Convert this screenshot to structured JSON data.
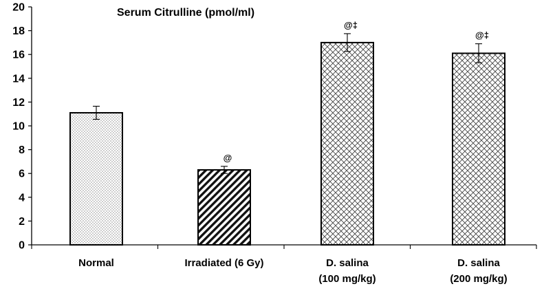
{
  "chart_data": {
    "type": "bar",
    "title": "Serum Citrulline (pmol/ml)",
    "xlabel": "",
    "ylabel": "",
    "ylim": [
      0,
      20
    ],
    "yticks": [
      0,
      2,
      4,
      6,
      8,
      10,
      12,
      14,
      16,
      18,
      20
    ],
    "grid": false,
    "legend": "none",
    "categories": [
      [
        "Normal"
      ],
      [
        "Irradiated (6 Gy)"
      ],
      [
        "D. salina",
        "(100 mg/kg)"
      ],
      [
        "D. salina",
        "(200 mg/kg)"
      ]
    ],
    "values": [
      11.1,
      6.3,
      17.0,
      16.1
    ],
    "errors": [
      0.55,
      0.3,
      0.75,
      0.8
    ],
    "annotations": [
      "",
      "@",
      "@‡",
      "@‡"
    ],
    "patterns": [
      "dots",
      "diagonal",
      "crosshatch",
      "crosshatch"
    ],
    "colors": {
      "bar_fill": "#ffffff",
      "bar_stroke": "#000000",
      "axis": "#000000",
      "pattern": "#000000"
    }
  }
}
